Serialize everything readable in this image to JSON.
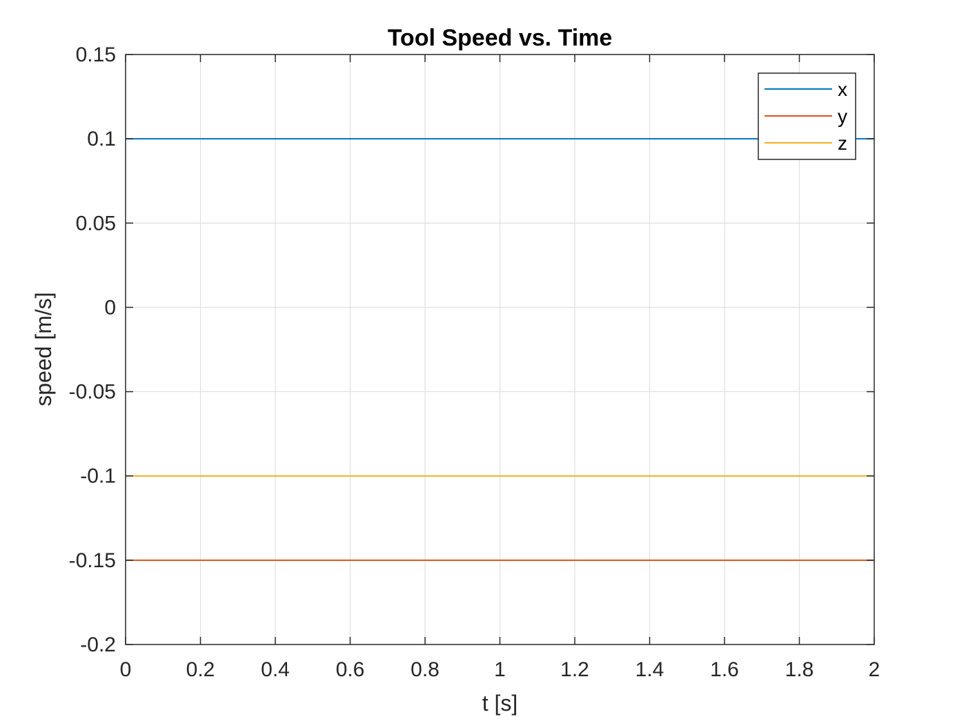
{
  "chart_data": {
    "type": "line",
    "title": "Tool Speed vs. Time",
    "xlabel": "t [s]",
    "ylabel": "speed [m/s]",
    "xlim": [
      0,
      2
    ],
    "ylim": [
      -0.2,
      0.15
    ],
    "x_ticks": [
      0,
      0.2,
      0.4,
      0.6,
      0.8,
      1,
      1.2,
      1.4,
      1.6,
      1.8,
      2
    ],
    "x_tick_labels": [
      "0",
      "0.2",
      "0.4",
      "0.6",
      "0.8",
      "1",
      "1.2",
      "1.4",
      "1.6",
      "1.8",
      "2"
    ],
    "y_ticks": [
      0.15,
      0.1,
      0.05,
      0,
      -0.05,
      -0.1,
      -0.15,
      -0.2
    ],
    "y_tick_labels": [
      "0.15",
      "0.1",
      "0.05",
      "0",
      "-0.05",
      "-0.1",
      "-0.15",
      "-0.2"
    ],
    "grid": true,
    "legend_position": "top-right",
    "series": [
      {
        "name": "x",
        "color": "#0072BD",
        "x": [
          0,
          2
        ],
        "y": [
          0.1,
          0.1
        ]
      },
      {
        "name": "y",
        "color": "#D95319",
        "x": [
          0,
          2
        ],
        "y": [
          -0.15,
          -0.15
        ]
      },
      {
        "name": "z",
        "color": "#EDB120",
        "x": [
          0,
          2
        ],
        "y": [
          -0.1,
          -0.1
        ]
      }
    ]
  }
}
